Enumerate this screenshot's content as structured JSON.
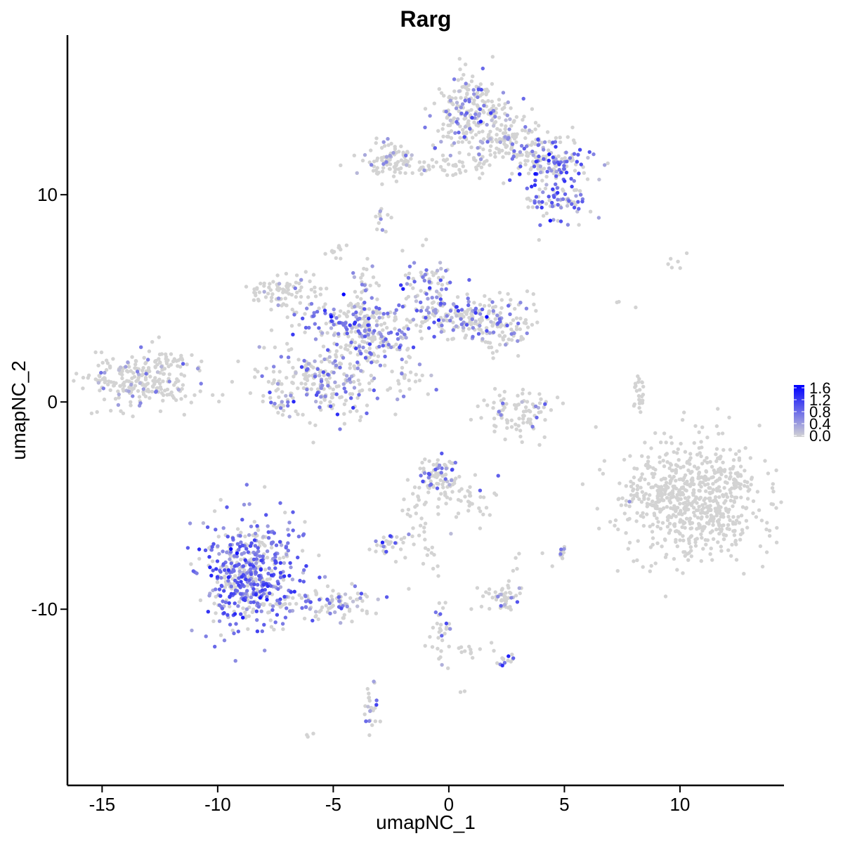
{
  "chart_data": {
    "type": "scatter",
    "title": "Rarg",
    "xlabel": "umapNC_1",
    "ylabel": "umapNC_2",
    "xlim": [
      -16.5,
      14.5
    ],
    "ylim": [
      -18.5,
      17.7
    ],
    "x_ticks": [
      -15,
      -10,
      -5,
      0,
      5,
      10
    ],
    "x_tick_labels": [
      "-15",
      "-10",
      "-5",
      "0",
      "5",
      "10"
    ],
    "y_ticks": [
      -10,
      0,
      10
    ],
    "y_tick_labels": [
      "-10",
      "0",
      "10"
    ],
    "grid": false,
    "legend": {
      "placement": "right",
      "type": "colorbar",
      "min": 0.0,
      "max": 1.6,
      "ticks": [
        "1.6",
        "1.2",
        "0.8",
        "0.4",
        "0.0"
      ],
      "low_color": "#d3d3d3",
      "high_color": "#0000ff"
    },
    "clusters": [
      {
        "cx": -13.3,
        "cy": 1.0,
        "sx": 1.3,
        "sy": 0.65,
        "n": 220,
        "expr_frac": 0.15,
        "expr_mean": 0.4
      },
      {
        "cx": -12.0,
        "cy": 1.9,
        "sx": 0.7,
        "sy": 0.35,
        "n": 40,
        "expr_frac": 0.05,
        "expr_mean": 0.3
      },
      {
        "cx": -5.6,
        "cy": 1.0,
        "sx": 1.3,
        "sy": 0.9,
        "n": 260,
        "expr_frac": 0.3,
        "expr_mean": 0.6
      },
      {
        "cx": -4.4,
        "cy": 3.9,
        "sx": 1.0,
        "sy": 0.5,
        "n": 120,
        "expr_frac": 0.45,
        "expr_mean": 0.7
      },
      {
        "cx": -3.2,
        "cy": 3.0,
        "sx": 0.8,
        "sy": 0.7,
        "n": 120,
        "expr_frac": 0.35,
        "expr_mean": 0.6
      },
      {
        "cx": -7.0,
        "cy": 5.2,
        "sx": 0.8,
        "sy": 0.5,
        "n": 90,
        "expr_frac": 0.05,
        "expr_mean": 0.4
      },
      {
        "cx": -3.7,
        "cy": 4.8,
        "sx": 0.3,
        "sy": 1.2,
        "n": 50,
        "expr_frac": 0.35,
        "expr_mean": 0.6
      },
      {
        "cx": -1.0,
        "cy": 5.8,
        "sx": 0.6,
        "sy": 0.7,
        "n": 70,
        "expr_frac": 0.55,
        "expr_mean": 0.7
      },
      {
        "cx": 0.1,
        "cy": 4.2,
        "sx": 1.2,
        "sy": 0.5,
        "n": 140,
        "expr_frac": 0.35,
        "expr_mean": 0.6
      },
      {
        "cx": 2.0,
        "cy": 3.8,
        "sx": 0.9,
        "sy": 0.6,
        "n": 120,
        "expr_frac": 0.2,
        "expr_mean": 0.5
      },
      {
        "cx": -4.8,
        "cy": 7.3,
        "sx": 0.2,
        "sy": 0.2,
        "n": 12,
        "expr_frac": 0.0,
        "expr_mean": 0.3
      },
      {
        "cx": -2.0,
        "cy": 1.3,
        "sx": 0.6,
        "sy": 0.5,
        "n": 25,
        "expr_frac": 0.25,
        "expr_mean": 0.5
      },
      {
        "cx": 0.9,
        "cy": 14.0,
        "sx": 0.8,
        "sy": 1.0,
        "n": 220,
        "expr_frac": 0.3,
        "expr_mean": 0.6
      },
      {
        "cx": 2.8,
        "cy": 12.5,
        "sx": 0.9,
        "sy": 0.6,
        "n": 130,
        "expr_frac": 0.2,
        "expr_mean": 0.5
      },
      {
        "cx": 4.6,
        "cy": 11.6,
        "sx": 0.8,
        "sy": 0.5,
        "n": 120,
        "expr_frac": 0.45,
        "expr_mean": 0.7
      },
      {
        "cx": 4.6,
        "cy": 9.8,
        "sx": 0.8,
        "sy": 0.6,
        "n": 90,
        "expr_frac": 0.5,
        "expr_mean": 0.8
      },
      {
        "cx": -2.5,
        "cy": 11.6,
        "sx": 0.5,
        "sy": 0.5,
        "n": 80,
        "expr_frac": 0.15,
        "expr_mean": 0.5
      },
      {
        "cx": -0.5,
        "cy": 11.4,
        "sx": 1.6,
        "sy": 0.25,
        "n": 60,
        "expr_frac": 0.05,
        "expr_mean": 0.4
      },
      {
        "cx": -2.9,
        "cy": 8.8,
        "sx": 0.15,
        "sy": 0.3,
        "n": 12,
        "expr_frac": 0.2,
        "expr_mean": 0.5
      },
      {
        "cx": 3.0,
        "cy": -0.4,
        "sx": 0.9,
        "sy": 0.6,
        "n": 90,
        "expr_frac": 0.1,
        "expr_mean": 0.5
      },
      {
        "cx": 8.2,
        "cy": 0.4,
        "sx": 0.15,
        "sy": 0.6,
        "n": 25,
        "expr_frac": 0.0,
        "expr_mean": 0.3
      },
      {
        "cx": 10.6,
        "cy": -4.7,
        "sx": 1.4,
        "sy": 1.5,
        "n": 680,
        "expr_frac": 0.0,
        "expr_mean": 0.3
      },
      {
        "cx": 8.0,
        "cy": -4.5,
        "sx": 0.2,
        "sy": 0.4,
        "n": 15,
        "expr_frac": 0.1,
        "expr_mean": 0.5
      },
      {
        "cx": -8.6,
        "cy": -8.3,
        "sx": 1.0,
        "sy": 1.3,
        "n": 520,
        "expr_frac": 0.65,
        "expr_mean": 0.75
      },
      {
        "cx": -5.5,
        "cy": -9.7,
        "sx": 1.3,
        "sy": 0.4,
        "n": 110,
        "expr_frac": 0.35,
        "expr_mean": 0.6
      },
      {
        "cx": -0.4,
        "cy": -3.6,
        "sx": 0.6,
        "sy": 0.5,
        "n": 90,
        "expr_frac": 0.3,
        "expr_mean": 0.6
      },
      {
        "cx": 1.0,
        "cy": -4.7,
        "sx": 0.6,
        "sy": 0.6,
        "n": 30,
        "expr_frac": 0.2,
        "expr_mean": 0.6
      },
      {
        "cx": -1.4,
        "cy": -5.5,
        "sx": 0.5,
        "sy": 1.0,
        "n": 35,
        "expr_frac": 0.05,
        "expr_mean": 0.4
      },
      {
        "cx": -2.6,
        "cy": -6.9,
        "sx": 0.3,
        "sy": 0.2,
        "n": 25,
        "expr_frac": 0.4,
        "expr_mean": 0.9
      },
      {
        "cx": 2.3,
        "cy": -9.4,
        "sx": 0.5,
        "sy": 0.35,
        "n": 50,
        "expr_frac": 0.15,
        "expr_mean": 0.5
      },
      {
        "cx": 5.0,
        "cy": -7.2,
        "sx": 0.15,
        "sy": 0.15,
        "n": 10,
        "expr_frac": 0.3,
        "expr_mean": 0.6
      },
      {
        "cx": -0.3,
        "cy": -11.2,
        "sx": 0.3,
        "sy": 0.7,
        "n": 30,
        "expr_frac": 0.25,
        "expr_mean": 0.6
      },
      {
        "cx": 1.2,
        "cy": -11.9,
        "sx": 0.6,
        "sy": 0.2,
        "n": 15,
        "expr_frac": 0.0,
        "expr_mean": 0.3
      },
      {
        "cx": 2.3,
        "cy": -12.5,
        "sx": 0.25,
        "sy": 0.2,
        "n": 12,
        "expr_frac": 0.4,
        "expr_mean": 0.9
      },
      {
        "cx": -3.4,
        "cy": -14.8,
        "sx": 0.2,
        "sy": 0.6,
        "n": 25,
        "expr_frac": 0.3,
        "expr_mean": 0.6
      },
      {
        "cx": -0.8,
        "cy": -7.5,
        "sx": 0.25,
        "sy": 0.6,
        "n": 10,
        "expr_frac": 0.0,
        "expr_mean": 0.3
      },
      {
        "cx": 3.3,
        "cy": -7.8,
        "sx": 0.4,
        "sy": 0.3,
        "n": 6,
        "expr_frac": 0.1,
        "expr_mean": 0.4
      },
      {
        "cx": 9.6,
        "cy": 6.7,
        "sx": 0.3,
        "sy": 0.2,
        "n": 6,
        "expr_frac": 0.0,
        "expr_mean": 0.3
      },
      {
        "cx": 7.5,
        "cy": 4.8,
        "sx": 0.2,
        "sy": 0.2,
        "n": 3,
        "expr_frac": 0.0,
        "expr_mean": 0.3
      },
      {
        "cx": -6.0,
        "cy": -16.2,
        "sx": 0.1,
        "sy": 0.1,
        "n": 3,
        "expr_frac": 0.0,
        "expr_mean": 0.3
      },
      {
        "cx": 0.6,
        "cy": -13.9,
        "sx": 0.1,
        "sy": 0.1,
        "n": 2,
        "expr_frac": 0.0,
        "expr_mean": 0.3
      }
    ]
  }
}
